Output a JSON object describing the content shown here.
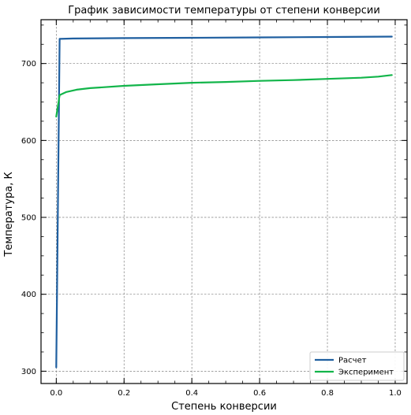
{
  "chart_data": {
    "type": "line",
    "title": "График зависимости температуры от степени конверсии",
    "xlabel": "Степень конверсии",
    "ylabel": "Температура, К",
    "xlim": [
      -0.045,
      1.035
    ],
    "ylim": [
      284,
      757
    ],
    "xticks": [
      0.0,
      0.2,
      0.4,
      0.6,
      0.8,
      1.0
    ],
    "xtick_labels": [
      "0.0",
      "0.2",
      "0.4",
      "0.6",
      "0.8",
      "1.0"
    ],
    "yticks": [
      300,
      400,
      500,
      600,
      700
    ],
    "ytick_labels": [
      "300",
      "400",
      "500",
      "600",
      "700"
    ],
    "grid": true,
    "legend_position": "bottom-right",
    "series": [
      {
        "name": "Расчет",
        "color": "#1f5fa0",
        "x": [
          0.0,
          0.01,
          0.05,
          0.2,
          0.4,
          0.6,
          0.8,
          0.99
        ],
        "y": [
          305,
          732,
          732.5,
          733,
          733.5,
          734,
          734.5,
          735
        ]
      },
      {
        "name": "Эксперимент",
        "color": "#12b54a",
        "x": [
          0.0,
          0.01,
          0.03,
          0.06,
          0.1,
          0.2,
          0.3,
          0.4,
          0.5,
          0.6,
          0.7,
          0.8,
          0.9,
          0.95,
          0.99
        ],
        "y": [
          631,
          659,
          663,
          666,
          668,
          671,
          673,
          675,
          676,
          677.5,
          678.5,
          680,
          681.5,
          683,
          685
        ]
      }
    ]
  }
}
